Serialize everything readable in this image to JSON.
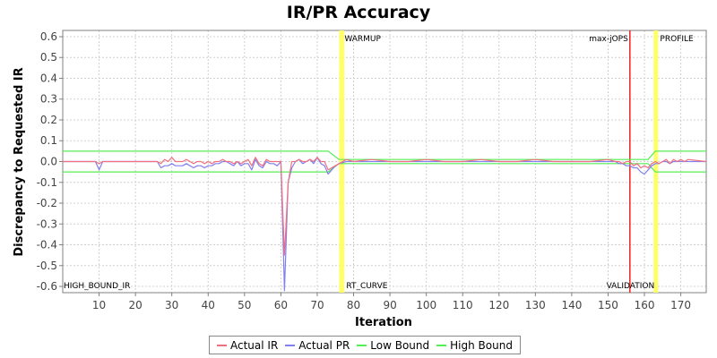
{
  "chart_data": {
    "type": "line",
    "title": "IR/PR Accuracy",
    "xlabel": "Iteration",
    "ylabel": "Discrepancy to Requested IR",
    "xlim": [
      0,
      177
    ],
    "ylim": [
      -0.63,
      0.63
    ],
    "xticks": [
      "10",
      "20",
      "30",
      "40",
      "50",
      "60",
      "70",
      "80",
      "90",
      "100",
      "110",
      "120",
      "130",
      "140",
      "150",
      "160",
      "170"
    ],
    "yticks": [
      "0.6",
      "0.5",
      "0.4",
      "0.3",
      "0.2",
      "0.1",
      "0.0",
      "-0.1",
      "-0.2",
      "-0.3",
      "-0.4",
      "-0.5",
      "-0.6"
    ],
    "grid": true,
    "legend_position": "bottom",
    "colors": {
      "actual_ir": "#f07080",
      "actual_pr": "#8080f0",
      "low_bound": "#55ee55",
      "high_bound": "#55ee55",
      "phase_marker": "#ffff66",
      "max_jops_marker": "#ee2222",
      "background": "#ffffff",
      "gridline": "#d0d0d0"
    },
    "markers": [
      {
        "x": 76.5,
        "label": "WARMUP",
        "label_pos": "top",
        "color": "yellow"
      },
      {
        "x": 77.0,
        "label": "RT_CURVE",
        "label_pos": "bottom",
        "color": "yellow"
      },
      {
        "x": 156.0,
        "label": "max-jOPS",
        "label_pos": "top-left",
        "color": "red"
      },
      {
        "x": 163.0,
        "label": "VALIDATION",
        "label_pos": "bottom-left",
        "color": "yellow"
      },
      {
        "x": 163.3,
        "label": "PROFILE",
        "label_pos": "top",
        "color": "yellow"
      },
      {
        "x": 0.0,
        "label": "HIGH_BOUND_IR",
        "label_pos": "bottom",
        "color": "none"
      }
    ],
    "series": [
      {
        "name": "Actual IR",
        "x": [
          0,
          9,
          10,
          11,
          26,
          27,
          28,
          29,
          30,
          31,
          32,
          33,
          34,
          35,
          36,
          37,
          38,
          39,
          40,
          41,
          42,
          43,
          44,
          45,
          46,
          47,
          48,
          49,
          50,
          51,
          52,
          53,
          54,
          55,
          56,
          57,
          58,
          59,
          60,
          61,
          62,
          63,
          64,
          65,
          66,
          67,
          68,
          69,
          70,
          71,
          72,
          73,
          74,
          75,
          76,
          78,
          80,
          85,
          90,
          95,
          100,
          105,
          110,
          115,
          120,
          125,
          130,
          135,
          140,
          145,
          150,
          152,
          153,
          154,
          155,
          156,
          157,
          158,
          159,
          160,
          161,
          162,
          163,
          164,
          165,
          166,
          167,
          168,
          169,
          170,
          171,
          172,
          177
        ],
        "y": [
          0,
          0,
          -0.01,
          0,
          0,
          -0.01,
          0.01,
          0.0,
          0.02,
          0.0,
          0.0,
          0.0,
          0.01,
          0.0,
          -0.01,
          0.0,
          0.0,
          -0.01,
          0.0,
          -0.01,
          0.0,
          0.0,
          0.01,
          0.0,
          0.0,
          -0.01,
          0.0,
          -0.01,
          0.0,
          0.01,
          -0.02,
          0.02,
          -0.01,
          -0.02,
          0.01,
          0.0,
          0.0,
          0.0,
          0.0,
          -0.45,
          -0.1,
          0.0,
          0.0,
          0.01,
          0.0,
          0.0,
          0.01,
          0.0,
          0.02,
          0.0,
          0.0,
          -0.04,
          -0.03,
          -0.02,
          -0.01,
          0.01,
          0.0,
          0.01,
          0.0,
          0.0,
          0.01,
          0.0,
          0.0,
          0.01,
          0.0,
          0.0,
          0.01,
          0.0,
          0.0,
          0.0,
          0.01,
          0.0,
          0.0,
          -0.01,
          0.0,
          0.0,
          -0.02,
          -0.01,
          -0.03,
          -0.02,
          -0.03,
          -0.01,
          0.0,
          -0.01,
          0.0,
          0.01,
          -0.01,
          0.01,
          0.0,
          0.01,
          0.0,
          0.01,
          0.0
        ]
      },
      {
        "name": "Actual PR",
        "x": [
          0,
          9,
          10,
          11,
          26,
          27,
          28,
          29,
          30,
          31,
          32,
          33,
          34,
          35,
          36,
          37,
          38,
          39,
          40,
          41,
          42,
          43,
          44,
          45,
          46,
          47,
          48,
          49,
          50,
          51,
          52,
          53,
          54,
          55,
          56,
          57,
          58,
          59,
          60,
          61,
          62,
          63,
          64,
          65,
          66,
          67,
          68,
          69,
          70,
          71,
          72,
          73,
          74,
          75,
          76,
          78,
          80,
          85,
          90,
          95,
          100,
          105,
          110,
          115,
          120,
          125,
          130,
          135,
          140,
          145,
          150,
          152,
          153,
          154,
          155,
          156,
          157,
          158,
          159,
          160,
          161,
          162,
          163,
          164,
          165,
          166,
          167,
          168,
          169,
          170,
          171,
          172,
          177
        ],
        "y": [
          0,
          0,
          -0.04,
          0,
          0,
          -0.03,
          -0.02,
          -0.02,
          -0.01,
          -0.02,
          -0.02,
          -0.02,
          -0.01,
          -0.02,
          -0.03,
          -0.02,
          -0.02,
          -0.03,
          -0.02,
          -0.02,
          -0.01,
          -0.01,
          0.0,
          0.0,
          -0.01,
          -0.02,
          0.0,
          -0.02,
          -0.01,
          -0.01,
          -0.04,
          0.01,
          -0.02,
          -0.03,
          0.0,
          -0.01,
          -0.01,
          -0.02,
          0.0,
          -0.62,
          -0.1,
          -0.03,
          0.0,
          0.01,
          -0.01,
          0.0,
          0.01,
          -0.01,
          0.02,
          -0.01,
          -0.02,
          -0.06,
          -0.04,
          -0.02,
          -0.01,
          0.0,
          0.0,
          0.0,
          0.0,
          0.0,
          0.0,
          0.0,
          0.0,
          0.0,
          0.0,
          0.0,
          0.0,
          0.0,
          0.0,
          0.0,
          0.0,
          0.0,
          -0.01,
          -0.01,
          -0.02,
          -0.02,
          -0.03,
          -0.03,
          -0.05,
          -0.06,
          -0.04,
          -0.02,
          -0.01,
          -0.01,
          0.0,
          0.0,
          -0.01,
          0.0,
          0.0,
          0.0,
          0.0,
          0.0,
          0.0
        ]
      },
      {
        "name": "Low Bound",
        "x": [
          0,
          73,
          76,
          161,
          163,
          177
        ],
        "y": [
          -0.05,
          -0.05,
          -0.01,
          -0.01,
          -0.05,
          -0.05
        ]
      },
      {
        "name": "High Bound",
        "x": [
          0,
          73,
          76,
          161,
          163,
          177
        ],
        "y": [
          0.05,
          0.05,
          0.01,
          0.01,
          0.05,
          0.05
        ]
      }
    ]
  }
}
